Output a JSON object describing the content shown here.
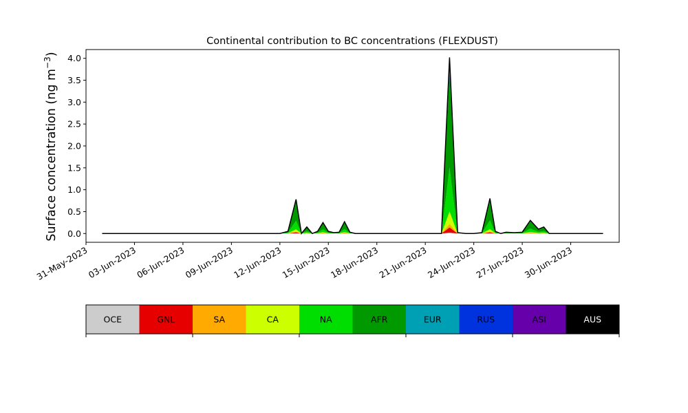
{
  "chart_data": {
    "type": "area",
    "title": "Continental contribution to BC concentrations (FLEXDUST)",
    "ylabel_main": "Surface concentration (ng m",
    "ylabel_exp": "−3",
    "ylabel_close": ")",
    "xlabel": "",
    "x_ticks": [
      "31-May-2023",
      "03-Jun-2023",
      "06-Jun-2023",
      "09-Jun-2023",
      "12-Jun-2023",
      "15-Jun-2023",
      "18-Jun-2023",
      "21-Jun-2023",
      "24-Jun-2023",
      "27-Jun-2023",
      "30-Jun-2023"
    ],
    "y_ticks": [
      "0.0",
      "0.5",
      "1.0",
      "1.5",
      "2.0",
      "2.5",
      "3.0",
      "3.5",
      "4.0"
    ],
    "xlim": [
      "2023-05-31",
      "2023-07-03"
    ],
    "ylim": [
      -0.2,
      4.2
    ],
    "grid": false,
    "series_stack_order": [
      "OCE",
      "GNL",
      "SA",
      "CA",
      "NA",
      "AFR",
      "EUR",
      "RUS",
      "ASI",
      "AUS"
    ],
    "series": [
      {
        "name": "OCE",
        "color": "#cccccc"
      },
      {
        "name": "GNL",
        "color": "#e60000"
      },
      {
        "name": "SA",
        "color": "#ffaa00"
      },
      {
        "name": "CA",
        "color": "#ccff00"
      },
      {
        "name": "NA",
        "color": "#00dd00"
      },
      {
        "name": "AFR",
        "color": "#009900"
      },
      {
        "name": "EUR",
        "color": "#00a0b4"
      },
      {
        "name": "RUS",
        "color": "#0033dd"
      },
      {
        "name": "ASI",
        "color": "#6600aa"
      },
      {
        "name": "AUS",
        "color": "#000000"
      }
    ],
    "x": [
      "2023-06-01",
      "2023-06-02",
      "2023-06-03",
      "2023-06-04",
      "2023-06-05",
      "2023-06-06",
      "2023-06-07",
      "2023-06-08",
      "2023-06-09",
      "2023-06-10",
      "2023-06-11",
      "2023-06-12",
      "2023-06-12",
      "2023-06-13",
      "2023-06-13",
      "2023-06-13",
      "2023-06-14",
      "2023-06-14",
      "2023-06-14",
      "2023-06-15",
      "2023-06-15",
      "2023-06-15",
      "2023-06-16",
      "2023-06-16",
      "2023-06-16",
      "2023-06-17",
      "2023-06-18",
      "2023-06-19",
      "2023-06-20",
      "2023-06-21",
      "2023-06-22",
      "2023-06-22",
      "2023-06-23",
      "2023-06-23",
      "2023-06-24",
      "2023-06-24",
      "2023-06-25",
      "2023-06-25",
      "2023-06-25",
      "2023-06-26",
      "2023-06-26",
      "2023-06-27",
      "2023-06-27",
      "2023-06-28",
      "2023-06-28",
      "2023-06-28",
      "2023-06-29",
      "2023-06-29",
      "2023-06-30",
      "2023-07-01",
      "2023-07-02"
    ],
    "totals": [
      0.0,
      0.0,
      0.0,
      0.0,
      0.0,
      0.0,
      0.0,
      0.0,
      0.0,
      0.0,
      0.0,
      0.0,
      0.05,
      0.78,
      0.0,
      0.15,
      0.0,
      0.05,
      0.25,
      0.05,
      0.02,
      0.03,
      0.27,
      0.03,
      0.0,
      0.0,
      0.0,
      0.0,
      0.0,
      0.0,
      0.0,
      4.02,
      0.02,
      0.0,
      0.0,
      0.02,
      0.8,
      0.05,
      0.0,
      0.03,
      0.02,
      0.03,
      0.3,
      0.1,
      0.15,
      0.0,
      0.0,
      0.0,
      0.0,
      0.0,
      0.0
    ]
  },
  "legend": {
    "items": [
      {
        "label": "OCE",
        "color": "#cccccc",
        "text_color": "#000000"
      },
      {
        "label": "GNL",
        "color": "#e60000",
        "text_color": "#000000"
      },
      {
        "label": "SA",
        "color": "#ffaa00",
        "text_color": "#000000"
      },
      {
        "label": "CA",
        "color": "#ccff00",
        "text_color": "#000000"
      },
      {
        "label": "NA",
        "color": "#00dd00",
        "text_color": "#000000"
      },
      {
        "label": "AFR",
        "color": "#009900",
        "text_color": "#000000"
      },
      {
        "label": "EUR",
        "color": "#00a0b4",
        "text_color": "#000000"
      },
      {
        "label": "RUS",
        "color": "#0033dd",
        "text_color": "#000000"
      },
      {
        "label": "ASI",
        "color": "#6600aa",
        "text_color": "#000000"
      },
      {
        "label": "AUS",
        "color": "#000000",
        "text_color": "#ffffff"
      }
    ]
  }
}
